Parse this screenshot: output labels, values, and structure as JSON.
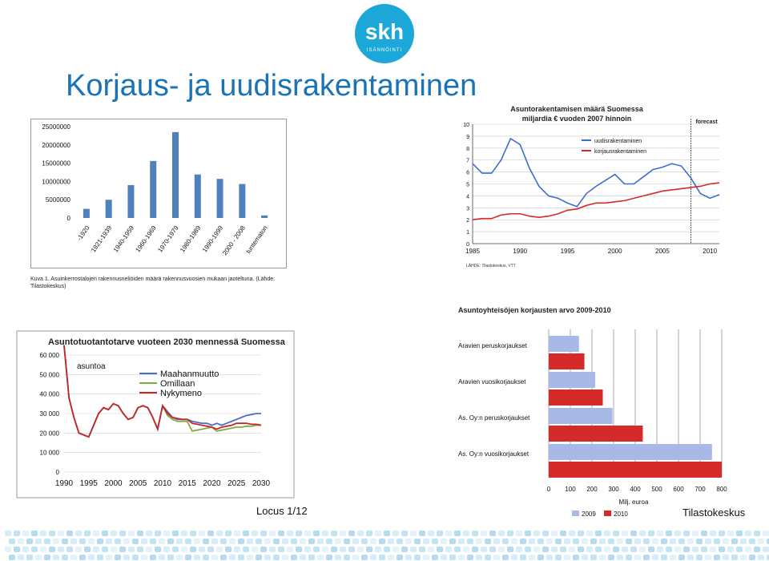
{
  "slide": {
    "title": "Korjaus- ja uudisrakentaminen",
    "footer_left": "Locus 1/12",
    "footer_right": "Tilastokeskus",
    "logo": {
      "text": "skh",
      "subtext": "ISÄNNÖINTI",
      "color": "#1ba8d8"
    },
    "caption": "Kuva 1. Asuinkerrostalojen rakennusneliöiden määrä rakennusvuosien mukaan jaoteltuna. (Lähde: Tilastokeskus)"
  },
  "chart_data": [
    {
      "type": "bar",
      "title": "",
      "categories": [
        "-1920",
        "1921-1939",
        "1940-1959",
        "1960-1969",
        "1970-1979",
        "1980-1989",
        "1990-1999",
        "2000 - 2008",
        "tuntematon"
      ],
      "values": [
        2500000,
        5000000,
        9000000,
        15600000,
        23500000,
        11900000,
        10700000,
        9300000,
        700000
      ],
      "ylim": [
        0,
        25000000
      ],
      "yticks": [
        "0",
        "5000000",
        "10000000",
        "15000000",
        "20000000",
        "25000000"
      ],
      "color": "#4f81bd",
      "grid": false
    },
    {
      "type": "line",
      "title": "Asuntorakentamisen määrä Suomessa",
      "subtitle": "miljardia € vuoden 2007 hinnoin",
      "annotation": "forecast",
      "source": "LÄHDE: Tilastokeskus, VTT",
      "x": [
        1985,
        1986,
        1987,
        1988,
        1989,
        1990,
        1991,
        1992,
        1993,
        1994,
        1995,
        1996,
        1997,
        1998,
        1999,
        2000,
        2001,
        2002,
        2003,
        2004,
        2005,
        2006,
        2007,
        2008,
        2009,
        2010,
        2011
      ],
      "series": [
        {
          "name": "uudisrakentaminen",
          "color": "#3a6fcf",
          "values": [
            6.7,
            5.9,
            5.9,
            7.0,
            8.8,
            8.3,
            6.3,
            4.8,
            4.0,
            3.8,
            3.4,
            3.1,
            4.2,
            4.8,
            5.3,
            5.8,
            5.0,
            5.0,
            5.6,
            6.2,
            6.4,
            6.7,
            6.5,
            5.5,
            4.2,
            3.8,
            4.1
          ]
        },
        {
          "name": "korjausrakentaminen",
          "color": "#d42a2a",
          "values": [
            2.0,
            2.1,
            2.1,
            2.4,
            2.5,
            2.5,
            2.3,
            2.2,
            2.3,
            2.5,
            2.8,
            2.9,
            3.2,
            3.4,
            3.4,
            3.5,
            3.6,
            3.8,
            4.0,
            4.2,
            4.4,
            4.5,
            4.6,
            4.7,
            4.8,
            5.0,
            5.1
          ]
        }
      ],
      "ylim": [
        0,
        10
      ],
      "xticks": [
        1985,
        1990,
        1995,
        2000,
        2005,
        2010
      ],
      "forecast_from": 2008,
      "grid": true
    },
    {
      "type": "line",
      "title": "Asuntotuotantotarve vuoteen 2030 mennessä Suomessa",
      "ylabel": "asuntoa",
      "x": [
        1990,
        1991,
        1992,
        1993,
        1994,
        1995,
        1996,
        1997,
        1998,
        1999,
        2000,
        2001,
        2002,
        2003,
        2004,
        2005,
        2006,
        2007,
        2008,
        2009,
        2010,
        2011,
        2012,
        2013,
        2014,
        2015,
        2016,
        2017,
        2018,
        2019,
        2020,
        2021,
        2022,
        2023,
        2024,
        2025,
        2026,
        2027,
        2028,
        2029,
        2030
      ],
      "series": [
        {
          "name": "Maahanmuutto",
          "color": "#4a6fc7",
          "values": [
            65000,
            38000,
            28000,
            20000,
            19000,
            18000,
            24000,
            30000,
            33000,
            32000,
            35000,
            34000,
            30000,
            27000,
            28000,
            33000,
            34000,
            33000,
            28000,
            22000,
            34000,
            31000,
            28000,
            27000,
            27000,
            27000,
            26000,
            25500,
            25000,
            25000,
            24000,
            25000,
            24000,
            25000,
            26000,
            27000,
            28000,
            29000,
            29500,
            30000,
            30000
          ]
        },
        {
          "name": "Omillaan",
          "color": "#7fae3c",
          "values": [
            65000,
            38000,
            28000,
            20000,
            19000,
            18000,
            24000,
            30000,
            33000,
            32000,
            35000,
            34000,
            30000,
            27000,
            28000,
            33000,
            34000,
            33000,
            28000,
            22000,
            34000,
            29000,
            27000,
            26000,
            26000,
            26000,
            21000,
            21500,
            22000,
            22500,
            23000,
            21000,
            21500,
            22000,
            22500,
            23000,
            23000,
            23500,
            23500,
            24000,
            24000
          ]
        },
        {
          "name": "Nykymeno",
          "color": "#c7262c",
          "values": [
            65000,
            38000,
            28000,
            20000,
            19000,
            18000,
            24000,
            30000,
            33000,
            32000,
            35000,
            34000,
            30000,
            27000,
            28000,
            33000,
            34000,
            33000,
            28000,
            22000,
            34000,
            30000,
            28000,
            27500,
            27000,
            27000,
            25000,
            24500,
            24000,
            23500,
            23000,
            22000,
            23000,
            23500,
            24000,
            25000,
            25000,
            25000,
            24500,
            24500,
            24000
          ]
        }
      ],
      "ylim": [
        0,
        60000
      ],
      "yticks": [
        "0",
        "10 000",
        "20 000",
        "30 000",
        "40 000",
        "50 000",
        "60 000"
      ],
      "xticks": [
        1990,
        1995,
        2000,
        2005,
        2010,
        2015,
        2020,
        2025,
        2030
      ],
      "grid": true
    },
    {
      "type": "bar",
      "orientation": "horizontal",
      "title": "Asuntoyhteisöjen korjausten arvo 2009-2010",
      "xlabel": "Milj. euroa",
      "categories": [
        "Aravien peruskorjaukset",
        "Aravien vuosikorjaukset",
        "As. Oy:n peruskorjaukset",
        "As. Oy:n vuosikorjaukset"
      ],
      "series": [
        {
          "name": "2009",
          "color": "#a8b9e8",
          "values": [
            140,
            215,
            295,
            755
          ]
        },
        {
          "name": "2010",
          "color": "#d42a2a",
          "values": [
            165,
            250,
            435,
            800
          ]
        }
      ],
      "xlim": [
        0,
        800
      ],
      "xticks": [
        0,
        100,
        200,
        300,
        400,
        500,
        600,
        700,
        800
      ],
      "grid": true,
      "legend": "bottom"
    }
  ]
}
